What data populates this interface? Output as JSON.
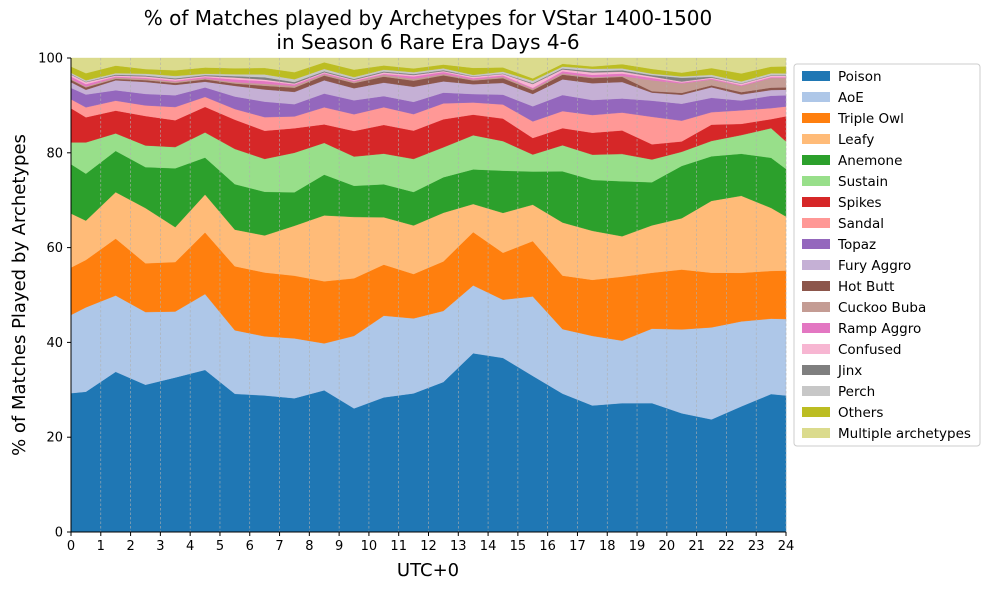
{
  "chart_data": {
    "type": "area",
    "stacked": true,
    "title": "% of Matches played by Archetypes for VStar 1400-1500\nin Season 6 Rare Era Days 4-6",
    "xlabel": "UTC+0",
    "ylabel": "% of Matches Played by Archetypes",
    "xlim": [
      0,
      24
    ],
    "ylim": [
      0,
      100
    ],
    "xticks": [
      0,
      1,
      2,
      3,
      4,
      5,
      6,
      7,
      8,
      9,
      10,
      11,
      12,
      13,
      14,
      15,
      16,
      17,
      18,
      19,
      20,
      21,
      22,
      23,
      24
    ],
    "yticks": [
      0,
      20,
      40,
      60,
      80,
      100
    ],
    "vertical_grid": true,
    "legend_position": "outside-right",
    "x": [
      0,
      0.5,
      1.5,
      2.5,
      3.5,
      4.5,
      5.5,
      6.5,
      7.5,
      8.5,
      9.5,
      10.5,
      11.5,
      12.5,
      13.5,
      14.5,
      15.5,
      16.5,
      17.5,
      18.5,
      19.5,
      20.5,
      21.5,
      22.5,
      23.5,
      24
    ],
    "series": [
      {
        "name": "Poison",
        "color": "#1f77b4",
        "values": [
          29.3,
          29.6,
          33.8,
          32.0,
          32.8,
          34.2,
          29.8,
          29.1,
          28.4,
          29.9,
          26.6,
          29.0,
          29.4,
          32.1,
          38.2,
          37.1,
          33.0,
          29.2,
          27.1,
          27.4,
          27.2,
          25.2,
          23.5,
          26.9,
          28.9,
          29.3
        ]
      },
      {
        "name": "AoE",
        "color": "#aec7e8",
        "values": [
          16.5,
          17.8,
          16.1,
          15.8,
          14.0,
          16.0,
          13.7,
          12.6,
          12.7,
          9.9,
          15.6,
          17.6,
          15.9,
          15.2,
          14.5,
          12.4,
          16.8,
          13.6,
          14.9,
          13.3,
          15.7,
          17.8,
          19.2,
          18.2,
          15.8,
          16.4
        ]
      },
      {
        "name": "Triple Owl",
        "color": "#ff7f0e",
        "values": [
          10.0,
          10.0,
          12.0,
          10.6,
          10.5,
          13.0,
          13.8,
          13.6,
          13.3,
          13.1,
          12.4,
          11.0,
          9.4,
          10.6,
          11.4,
          10.0,
          11.7,
          11.3,
          12.0,
          13.6,
          11.8,
          12.7,
          11.4,
          10.4,
          10.0,
          10.4
        ]
      },
      {
        "name": "Leafy",
        "color": "#ffbb78",
        "values": [
          11.4,
          8.3,
          9.8,
          12.0,
          7.4,
          8.0,
          7.9,
          7.9,
          10.6,
          13.9,
          13.2,
          10.2,
          10.3,
          10.4,
          6.0,
          8.5,
          7.7,
          11.2,
          10.5,
          8.6,
          10.0,
          10.9,
          15.0,
          16.5,
          13.2,
          11.6
        ]
      },
      {
        "name": "Anemone",
        "color": "#2ca02c",
        "values": [
          10.4,
          9.9,
          8.7,
          8.9,
          12.5,
          7.8,
          9.8,
          9.3,
          7.1,
          8.6,
          6.7,
          7.1,
          7.1,
          7.6,
          7.4,
          9.0,
          7.0,
          10.8,
          10.9,
          11.7,
          9.1,
          11.1,
          9.3,
          9.0,
          10.5,
          10.2
        ]
      },
      {
        "name": "Sustain",
        "color": "#98df8a",
        "values": [
          4.6,
          6.6,
          3.7,
          4.7,
          4.5,
          5.3,
          7.6,
          7.0,
          8.4,
          6.7,
          6.3,
          6.6,
          7.0,
          6.4,
          7.3,
          6.3,
          3.6,
          5.5,
          5.4,
          5.8,
          4.8,
          3.0,
          3.2,
          4.0,
          6.2,
          5.9
        ]
      },
      {
        "name": "Spikes",
        "color": "#d62728",
        "values": [
          7.2,
          5.3,
          4.8,
          6.4,
          5.7,
          5.4,
          6.3,
          6.0,
          5.2,
          3.9,
          5.5,
          6.2,
          6.0,
          6.0,
          4.4,
          4.8,
          3.5,
          3.6,
          4.7,
          5.0,
          3.2,
          2.2,
          3.4,
          2.4,
          1.9,
          5.4
        ]
      },
      {
        "name": "Sandal",
        "color": "#ff9896",
        "values": [
          1.9,
          2.1,
          2.1,
          2.3,
          2.8,
          2.1,
          2.3,
          2.9,
          2.5,
          3.6,
          3.6,
          3.8,
          3.5,
          3.4,
          2.6,
          3.0,
          3.5,
          3.6,
          3.8,
          3.8,
          5.8,
          4.4,
          2.6,
          2.9,
          2.3,
          2.1
        ]
      },
      {
        "name": "Topaz",
        "color": "#9467bd",
        "values": [
          2.4,
          2.7,
          2.2,
          2.5,
          2.5,
          2.0,
          2.7,
          3.3,
          2.6,
          2.9,
          3.0,
          2.4,
          2.6,
          2.3,
          1.8,
          2.1,
          3.2,
          3.4,
          3.2,
          3.0,
          3.4,
          3.6,
          3.0,
          2.1,
          2.6,
          2.4
        ]
      },
      {
        "name": "Fury Aggro",
        "color": "#c5b0d5",
        "values": [
          1.2,
          1.0,
          2.1,
          2.6,
          2.2,
          1.2,
          2.3,
          2.6,
          2.6,
          2.8,
          2.6,
          2.9,
          3.2,
          2.4,
          2.1,
          2.5,
          2.6,
          3.3,
          3.6,
          3.5,
          1.7,
          1.9,
          2.2,
          1.3,
          1.2,
          1.2
        ]
      },
      {
        "name": "Hot Butt",
        "color": "#8c564b",
        "values": [
          0.5,
          0.5,
          0.3,
          0.4,
          0.4,
          0.5,
          0.5,
          0.8,
          0.9,
          1.0,
          1.1,
          1.3,
          1.3,
          1.3,
          0.8,
          1.0,
          0.8,
          1.0,
          1.1,
          1.1,
          0.3,
          0.4,
          0.4,
          0.5,
          0.5,
          0.5
        ]
      },
      {
        "name": "Cuckoo Buba",
        "color": "#c49c94",
        "values": [
          0.2,
          0.2,
          0.3,
          0.3,
          0.3,
          0.2,
          0.3,
          0.4,
          0.4,
          0.3,
          0.3,
          0.4,
          0.4,
          0.3,
          0.2,
          0.3,
          0.3,
          0.3,
          0.2,
          0.2,
          2.3,
          2.0,
          1.2,
          1.3,
          2.0,
          2.0
        ]
      },
      {
        "name": "Ramp Aggro",
        "color": "#e377c2",
        "values": [
          0.5,
          0.5,
          0.2,
          0.2,
          0.2,
          0.3,
          0.6,
          0.6,
          0.3,
          0.2,
          0.2,
          0.2,
          0.5,
          0.4,
          0.3,
          0.3,
          0.2,
          0.4,
          0.5,
          0.5,
          0.5,
          0.2,
          0.2,
          0.2,
          0.2,
          0.2
        ]
      },
      {
        "name": "Confused",
        "color": "#f7b6d2",
        "values": [
          0.4,
          0.4,
          0.2,
          0.3,
          0.3,
          0.2,
          0.4,
          0.3,
          0.2,
          0.2,
          0.2,
          0.3,
          0.3,
          0.2,
          0.3,
          0.3,
          0.8,
          0.4,
          0.5,
          0.4,
          0.3,
          0.2,
          0.2,
          0.3,
          0.3,
          0.3
        ]
      },
      {
        "name": "Jinx",
        "color": "#7f7f7f",
        "values": [
          0.1,
          0.1,
          0.2,
          0.2,
          0.2,
          0.2,
          0.3,
          0.5,
          0.3,
          0.2,
          0.2,
          0.2,
          0.2,
          0.2,
          0.1,
          0.1,
          0.2,
          0.2,
          0.3,
          0.3,
          0.3,
          0.8,
          0.2,
          0.1,
          0.1,
          0.1
        ]
      },
      {
        "name": "Perch",
        "color": "#c7c7c7",
        "values": [
          0.3,
          0.3,
          0.3,
          0.4,
          0.5,
          0.3,
          0.4,
          0.6,
          0.6,
          0.5,
          0.4,
          0.4,
          0.4,
          0.4,
          0.3,
          0.4,
          0.5,
          0.4,
          0.5,
          0.4,
          0.3,
          0.3,
          0.4,
          0.4,
          0.4,
          0.4
        ]
      },
      {
        "name": "Others",
        "color": "#bcbd22",
        "values": [
          1.3,
          1.5,
          1.6,
          1.0,
          1.2,
          1.3,
          1.3,
          1.4,
          1.5,
          1.4,
          1.6,
          0.9,
          0.8,
          0.8,
          1.5,
          0.9,
          0.5,
          0.6,
          0.5,
          0.9,
          1.0,
          0.8,
          1.4,
          1.7,
          1.4,
          1.5
        ]
      },
      {
        "name": "Multiple archetypes",
        "color": "#dbdb8d",
        "values": [
          1.8,
          3.2,
          1.6,
          2.4,
          2.6,
          2.0,
          2.2,
          2.1,
          3.0,
          0.9,
          2.5,
          1.6,
          2.2,
          1.4,
          2.1,
          2.0,
          4.3,
          1.2,
          1.8,
          1.3,
          2.3,
          3.1,
          2.1,
          3.3,
          1.8,
          1.8
        ]
      }
    ]
  }
}
